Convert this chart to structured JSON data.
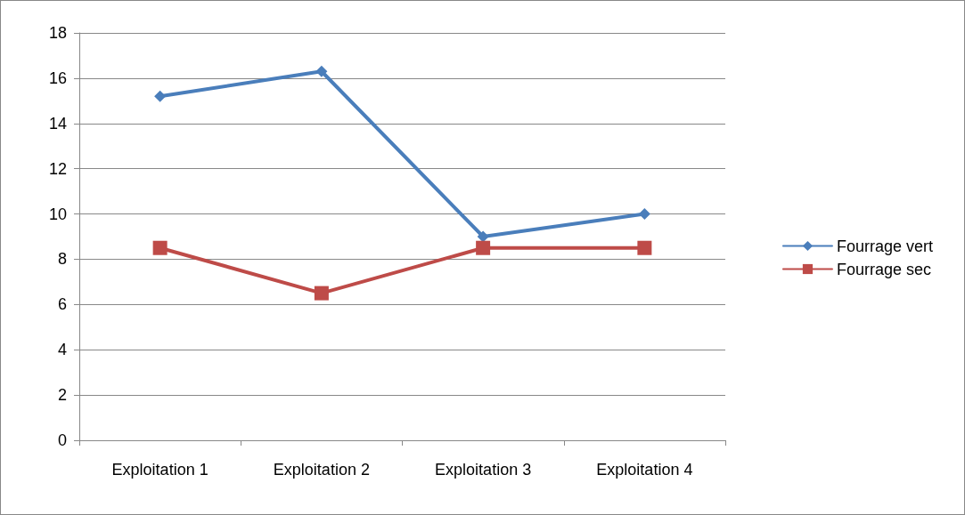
{
  "chart_data": {
    "type": "line",
    "categories": [
      "Exploitation 1",
      "Exploitation 2",
      "Exploitation 3",
      "Exploitation 4"
    ],
    "series": [
      {
        "name": "Fourrage vert",
        "color": "#4a7ebb",
        "marker": "diamond",
        "values": [
          15.2,
          16.3,
          9,
          10
        ]
      },
      {
        "name": "Fourrage sec",
        "color": "#be4b48",
        "marker": "square",
        "values": [
          8.5,
          6.5,
          8.5,
          8.5
        ]
      }
    ],
    "ylim": [
      0,
      18
    ],
    "yticks": [
      0,
      2,
      4,
      6,
      8,
      10,
      12,
      14,
      16,
      18
    ],
    "grid": "y",
    "legend": "right",
    "line_style": "solid"
  }
}
